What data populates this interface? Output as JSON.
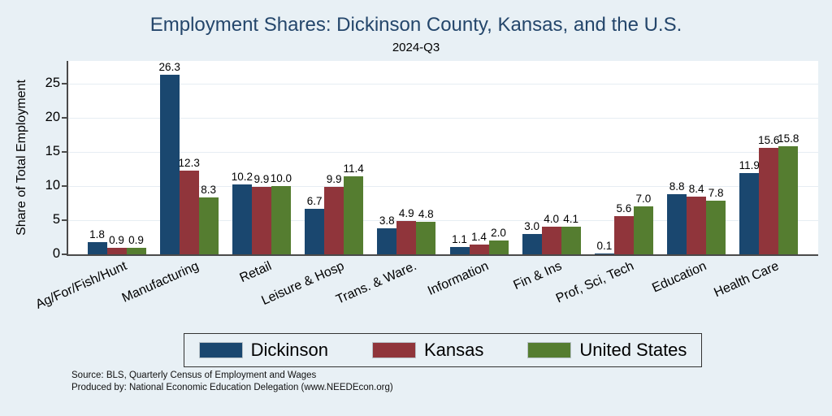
{
  "title": "Employment Shares: Dickinson County, Kansas, and the U.S.",
  "subtitle": "2024-Q3",
  "footer": {
    "source_line": "Source: BLS, Quarterly Census of Employment and Wages",
    "produced_line": "Produced by: National Economic Education Delegation (www.NEEDEcon.org)"
  },
  "colors": {
    "background": "#e8f0f5",
    "plot_background": "#ffffff",
    "title_text": "#24466b",
    "gridline": "#e6edf3",
    "axis_line": "#4a4a4a"
  },
  "chart_data": {
    "type": "bar",
    "title": "Employment Shares: Dickinson County, Kansas, and the U.S.",
    "subtitle": "2024-Q3",
    "xlabel": "",
    "ylabel": "Share of Total Employment",
    "ylim": [
      0,
      28.3
    ],
    "yticks": [
      0,
      5,
      10,
      15,
      20,
      25
    ],
    "grid": true,
    "legend_position": "bottom",
    "value_labels": true,
    "categories": [
      "Ag/For/Fish/Hunt",
      "Manufacturing",
      "Retail",
      "Leisure & Hosp",
      "Trans. & Ware.",
      "Information",
      "Fin & Ins",
      "Prof, Sci, Tech",
      "Education",
      "Health Care"
    ],
    "series": [
      {
        "name": "Dickinson",
        "color": "#1a476f",
        "values": [
          1.8,
          26.3,
          10.2,
          6.7,
          3.8,
          1.1,
          3.0,
          0.1,
          8.8,
          11.9
        ]
      },
      {
        "name": "Kansas",
        "color": "#90353b",
        "values": [
          0.9,
          12.3,
          9.9,
          9.9,
          4.9,
          1.4,
          4.0,
          5.6,
          8.4,
          15.6
        ]
      },
      {
        "name": "United States",
        "color": "#557d30",
        "values": [
          0.9,
          8.3,
          10.0,
          11.4,
          4.8,
          2.0,
          4.1,
          7.0,
          7.8,
          15.8
        ]
      }
    ]
  }
}
